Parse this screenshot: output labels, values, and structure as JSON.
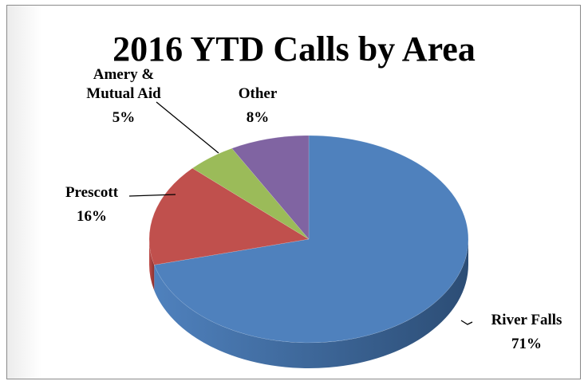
{
  "chart_data": {
    "type": "pie3d",
    "title": "2016 YTD Calls by Area",
    "categories": [
      "River Falls",
      "Prescott",
      "Amery & Mutual Aid",
      "Other"
    ],
    "values": [
      71,
      16,
      5,
      8
    ],
    "value_labels": [
      "71%",
      "16%",
      "5%",
      "8%"
    ],
    "colors": [
      "#4f81bd",
      "#c0504d",
      "#9bbb59",
      "#8064a2"
    ],
    "side_colors": [
      "#2c4d75",
      "#8c2f2d",
      "#6e8a3a",
      "#5a4578"
    ]
  }
}
